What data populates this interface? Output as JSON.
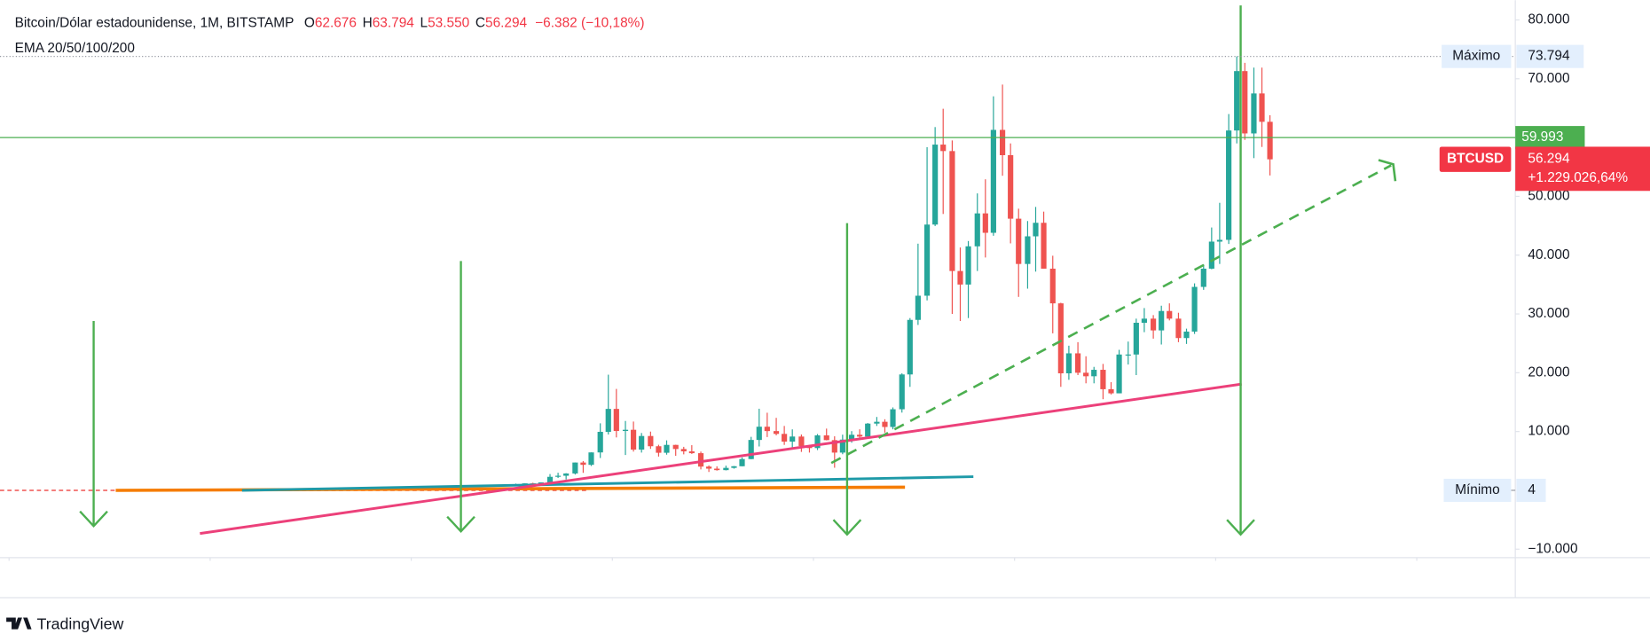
{
  "chart_data": {
    "type": "candlestick",
    "title": "Bitcoin/Dólar estadounidense, 1M, BITSTAMP",
    "subtitle": "EMA 20/50/100/200",
    "ohlc": [
      {
        "prefix": "O",
        "value": 62676,
        "label": "62.676"
      },
      {
        "prefix": "H",
        "value": 63794,
        "label": "63.794"
      },
      {
        "prefix": "L",
        "value": 53550,
        "label": "53.550"
      },
      {
        "prefix": "C",
        "value": 56294,
        "label": "56.294"
      }
    ],
    "change_label": "−6.382 (−10,18%)",
    "x": [
      2017.04,
      2017.13,
      2017.21,
      2017.29,
      2017.38,
      2017.46,
      2017.54,
      2017.63,
      2017.71,
      2017.79,
      2017.88,
      2017.96,
      2018.04,
      2018.13,
      2018.21,
      2018.29,
      2018.38,
      2018.46,
      2018.54,
      2018.63,
      2018.71,
      2018.79,
      2018.88,
      2018.96,
      2019.04,
      2019.13,
      2019.21,
      2019.29,
      2019.38,
      2019.46,
      2019.54,
      2019.63,
      2019.71,
      2019.79,
      2019.88,
      2019.96,
      2020.04,
      2020.13,
      2020.21,
      2020.29,
      2020.38,
      2020.46,
      2020.54,
      2020.63,
      2020.71,
      2020.79,
      2020.88,
      2020.96,
      2021.04,
      2021.13,
      2021.21,
      2021.29,
      2021.38,
      2021.46,
      2021.54,
      2021.63,
      2021.71,
      2021.79,
      2021.88,
      2021.96,
      2022.04,
      2022.13,
      2022.21,
      2022.29,
      2022.38,
      2022.46,
      2022.54,
      2022.63,
      2022.71,
      2022.79,
      2022.88,
      2022.96,
      2023.04,
      2023.13,
      2023.21,
      2023.29,
      2023.38,
      2023.46,
      2023.54,
      2023.63,
      2023.71,
      2023.79,
      2023.88,
      2023.96,
      2024.04,
      2024.13,
      2024.21,
      2024.29,
      2024.38,
      2024.46,
      2024.54
    ],
    "series": [
      {
        "name": "BTCUSD",
        "up_color": "#26a69a",
        "down_color": "#ef5350",
        "open": [
          964,
          970,
          1190,
          1080,
          1350,
          2300,
          2480,
          2870,
          4730,
          4340,
          6450,
          9950,
          13850,
          10100,
          10300,
          6930,
          9240,
          7500,
          6390,
          7730,
          7030,
          6630,
          6320,
          4040,
          3690,
          3440,
          3820,
          4100,
          5320,
          8570,
          10820,
          10080,
          9600,
          8290,
          9150,
          7540,
          7190,
          9350,
          8540,
          6420,
          8630,
          9450,
          9140,
          11350,
          11660,
          10780,
          13790,
          19710,
          28990,
          33100,
          45200,
          58800,
          57700,
          37300,
          35000,
          41500,
          47100,
          43800,
          61300,
          57000,
          46200,
          38500,
          43200,
          45500,
          37700,
          31800,
          19900,
          23300,
          20000,
          19400,
          20500,
          17200,
          16500,
          23100,
          23100,
          28500,
          29200,
          27200,
          30500,
          29200,
          25900,
          27000,
          34600,
          37700,
          42300,
          42600,
          61200,
          71300,
          60700,
          67500,
          62676
        ],
        "high": [
          1150,
          1200,
          1290,
          1350,
          2760,
          3000,
          2920,
          4750,
          4980,
          6470,
          11400,
          19670,
          17250,
          11800,
          11700,
          9750,
          9990,
          7750,
          8500,
          7760,
          7400,
          7680,
          6600,
          4240,
          4080,
          4200,
          4150,
          5600,
          9100,
          13880,
          13200,
          12330,
          10950,
          10370,
          9500,
          7740,
          9580,
          10500,
          9190,
          9470,
          10070,
          10380,
          11450,
          12480,
          12090,
          14100,
          19900,
          29300,
          41950,
          58350,
          61780,
          64900,
          59500,
          41300,
          42400,
          50500,
          52900,
          67000,
          69000,
          59000,
          47900,
          45800,
          48200,
          47400,
          39900,
          31900,
          24600,
          25200,
          22800,
          21000,
          21500,
          18400,
          23900,
          25300,
          29200,
          31000,
          29800,
          31400,
          31800,
          30200,
          27500,
          35200,
          38400,
          44700,
          48900,
          64000,
          73794,
          72700,
          71900,
          71900,
          63794
        ],
        "low": [
          750,
          920,
          890,
          1060,
          1350,
          2100,
          1840,
          2700,
          2970,
          4150,
          5500,
          9500,
          9000,
          6000,
          6600,
          6430,
          7050,
          5750,
          6070,
          5880,
          6120,
          6200,
          3550,
          3120,
          3350,
          3380,
          3700,
          4080,
          5300,
          7460,
          9060,
          9350,
          7730,
          7300,
          6540,
          6430,
          6850,
          8500,
          3850,
          6150,
          8100,
          8900,
          8980,
          10950,
          9820,
          10380,
          13220,
          17600,
          28130,
          32300,
          44950,
          47000,
          30000,
          28800,
          29300,
          37300,
          39600,
          43300,
          53500,
          42000,
          32900,
          34300,
          37200,
          37700,
          26700,
          17600,
          18800,
          19600,
          18200,
          18200,
          15500,
          16300,
          16500,
          21400,
          19600,
          26900,
          25800,
          24800,
          28900,
          25200,
          24900,
          26600,
          34100,
          37600,
          38500,
          41900,
          59000,
          59600,
          56500,
          58400,
          53550
        ],
        "close": [
          970,
          1190,
          1080,
          1350,
          2300,
          2480,
          2870,
          4730,
          4340,
          6450,
          9950,
          13850,
          10100,
          10300,
          6930,
          9240,
          7500,
          6390,
          7730,
          7030,
          6630,
          6320,
          4040,
          3690,
          3440,
          3820,
          4100,
          5320,
          8570,
          10820,
          10080,
          9600,
          8290,
          9150,
          7540,
          7190,
          9350,
          8540,
          6420,
          8630,
          9450,
          9140,
          11350,
          11660,
          10780,
          13790,
          19710,
          28990,
          33100,
          45200,
          58800,
          57700,
          37300,
          35000,
          41500,
          47100,
          43800,
          61300,
          57000,
          46200,
          38500,
          43200,
          45500,
          37700,
          31800,
          19900,
          23300,
          20000,
          19400,
          20500,
          17200,
          16500,
          23100,
          23100,
          28500,
          29200,
          27200,
          30500,
          29200,
          25900,
          27000,
          34600,
          37700,
          42300,
          42600,
          61200,
          71300,
          60700,
          67500,
          62676,
          56294
        ]
      }
    ],
    "xlim": [
      2011.91,
      2026.98
    ],
    "xticks": [
      2012,
      2014,
      2016,
      2018,
      2020,
      2022,
      2024,
      2026
    ],
    "ylim": [
      -11450,
      83360
    ],
    "yticks": [
      {
        "value": 80000,
        "label": "80.000"
      },
      {
        "value": 70000,
        "label": "70.000"
      },
      {
        "value": 50000,
        "label": "50.000"
      },
      {
        "value": 40000,
        "label": "40.000"
      },
      {
        "value": 30000,
        "label": "30.000"
      },
      {
        "value": 20000,
        "label": "20.000"
      },
      {
        "value": 10000,
        "label": "10.000"
      },
      {
        "value": -10000,
        "label": "−10.000"
      }
    ],
    "maximum": {
      "label": "Máximo",
      "value": 73794,
      "value_label": "73.794"
    },
    "minimum": {
      "label": "Mínimo",
      "value": 4,
      "value_label": "4"
    },
    "price_line": {
      "value": 59993,
      "label": "59.993",
      "color": "#4caf50"
    },
    "last_price": {
      "symbol": "BTCUSD",
      "value": 56294,
      "label": "56.294",
      "change_label": "+1.229.026,64%",
      "color": "#f23645"
    }
  },
  "branding": "TradingView"
}
